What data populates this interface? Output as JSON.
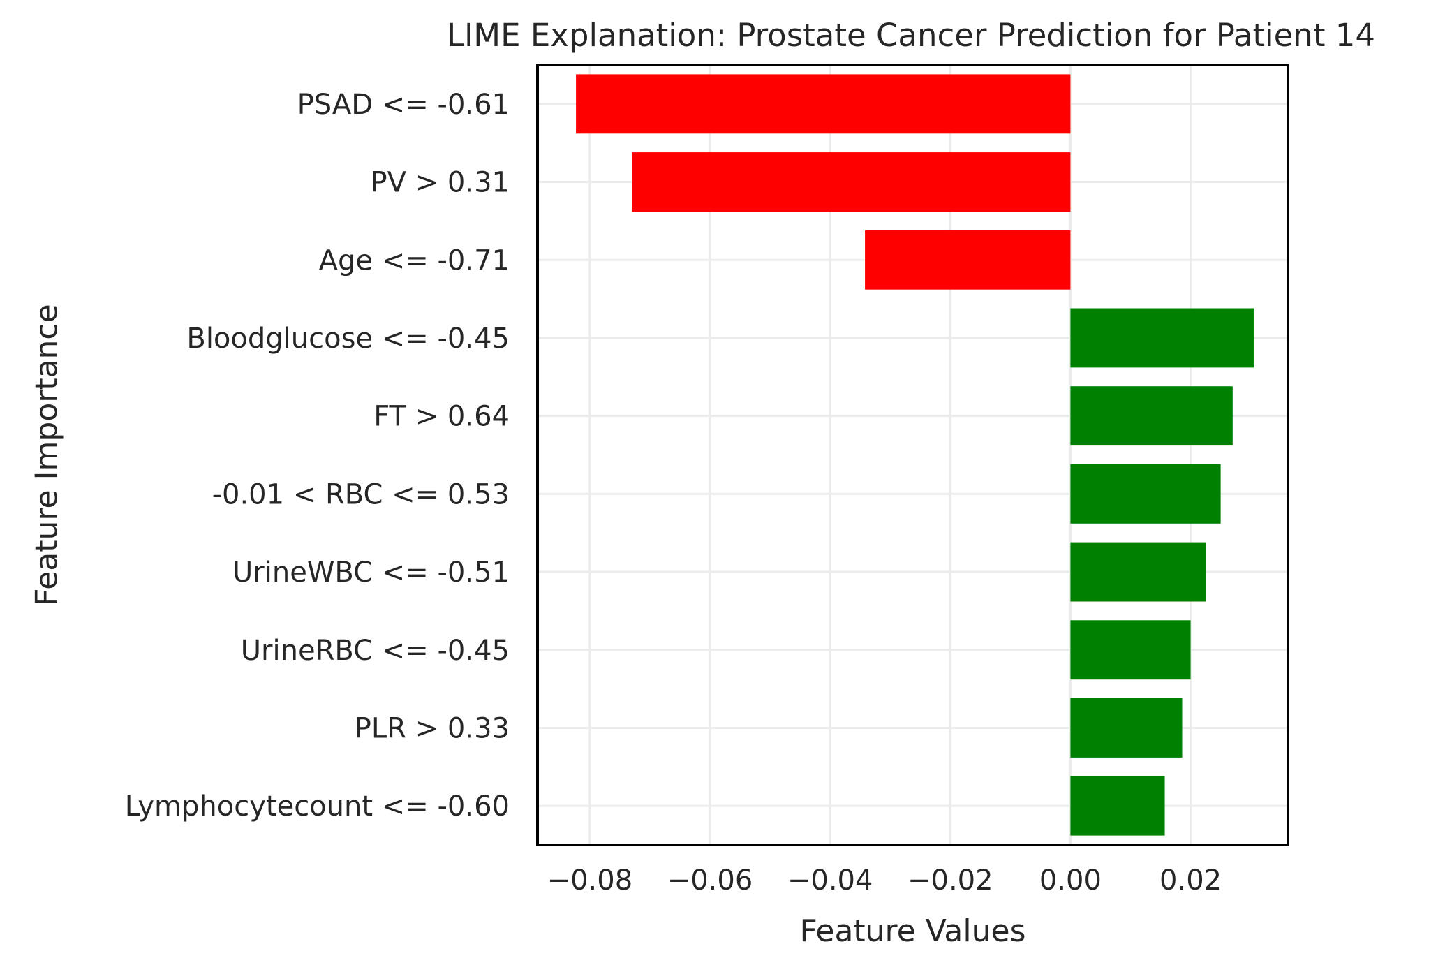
{
  "chart_data": {
    "type": "bar",
    "orientation": "horizontal",
    "title": "LIME Explanation: Prostate Cancer Prediction for Patient 14",
    "xlabel": "Feature Values",
    "ylabel": "Feature Importance",
    "xlim": [
      -0.0887,
      0.0362
    ],
    "xticks": [
      -0.08,
      -0.06,
      -0.04,
      -0.02,
      0.0,
      0.02
    ],
    "xtick_labels": [
      "−0.08",
      "−0.06",
      "−0.04",
      "−0.02",
      "0.00",
      "0.02"
    ],
    "grid": true,
    "positive_color": "#008000",
    "negative_color": "#ff0000",
    "categories": [
      "PSAD <= -0.61",
      "PV > 0.31",
      "Age <= -0.71",
      "Bloodglucose <= -0.45",
      "FT > 0.64",
      "-0.01 < RBC <= 0.53",
      "UrineWBC <= -0.51",
      "UrineRBC <= -0.45",
      "PLR > 0.33",
      "Lymphocytecount <= -0.60"
    ],
    "values": [
      -0.0823,
      -0.073,
      -0.0342,
      0.0305,
      0.027,
      0.025,
      0.0226,
      0.02,
      0.0186,
      0.0157
    ]
  }
}
